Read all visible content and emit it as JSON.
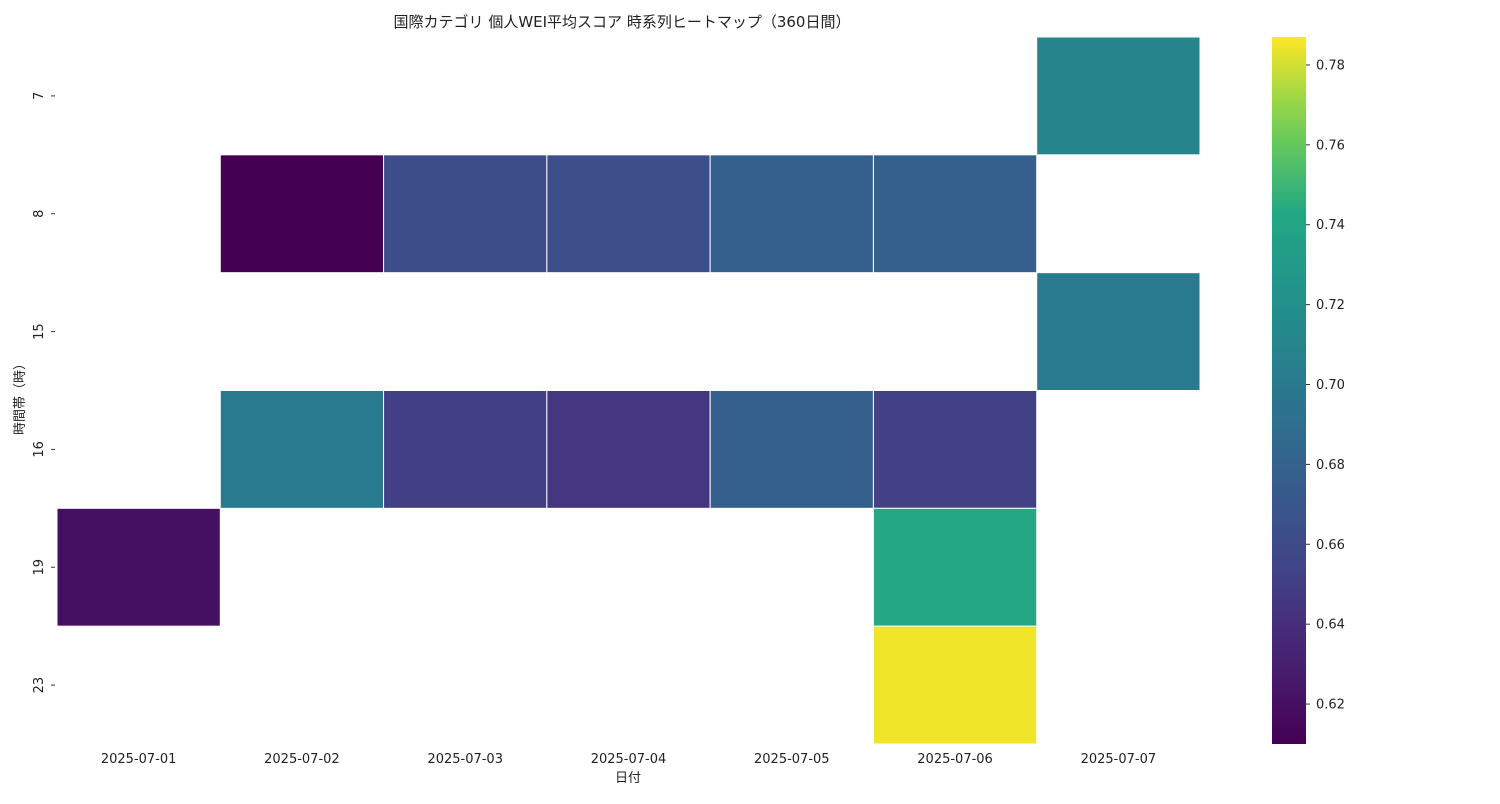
{
  "chart_data": {
    "type": "heatmap",
    "title": "国際カテゴリ 個人WEI平均スコア 時系列ヒートマップ（360日間）",
    "xlabel": "日付",
    "ylabel": "時間帯（時）",
    "x_categories": [
      "2025-07-01",
      "2025-07-02",
      "2025-07-03",
      "2025-07-04",
      "2025-07-05",
      "2025-07-06",
      "2025-07-07"
    ],
    "y_categories": [
      "7",
      "8",
      "15",
      "16",
      "19",
      "23"
    ],
    "values": [
      [
        null,
        null,
        null,
        null,
        null,
        null,
        0.71
      ],
      [
        null,
        0.61,
        0.662,
        0.664,
        0.678,
        0.677,
        null
      ],
      [
        null,
        null,
        null,
        null,
        null,
        null,
        0.7
      ],
      [
        null,
        0.7,
        0.651,
        0.645,
        0.678,
        0.652,
        null
      ],
      [
        0.62,
        null,
        null,
        null,
        null,
        0.743,
        null
      ],
      [
        null,
        null,
        null,
        null,
        null,
        0.785,
        null
      ]
    ],
    "colormap": "viridis",
    "colorbar": {
      "min": 0.61,
      "max": 0.787,
      "ticks": [
        0.62,
        0.64,
        0.66,
        0.68,
        0.7,
        0.72,
        0.74,
        0.76,
        0.78
      ],
      "tick_labels": [
        "0.62",
        "0.64",
        "0.66",
        "0.68",
        "0.70",
        "0.72",
        "0.74",
        "0.76",
        "0.78"
      ]
    },
    "grid": false,
    "cell_border_color": "#ffffff"
  }
}
